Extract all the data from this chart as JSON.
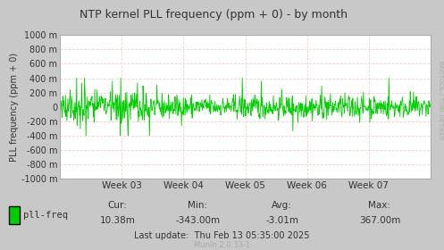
{
  "title": "NTP kernel PLL frequency (ppm + 0) - by month",
  "ylabel": "PLL frequency (ppm + 0)",
  "ylim": [
    -1000,
    1000
  ],
  "yticks": [
    -1000,
    -800,
    -600,
    -400,
    -200,
    0,
    200,
    400,
    600,
    800,
    1000
  ],
  "ytick_labels": [
    "-1000 m",
    "-800 m",
    "-600 m",
    "-400 m",
    "-200 m",
    "0",
    "200 m",
    "400 m",
    "600 m",
    "800 m",
    "1000 m"
  ],
  "x_week_labels": [
    "Week 03",
    "Week 04",
    "Week 05",
    "Week 06",
    "Week 07"
  ],
  "bg_color": "#c8c8c8",
  "plot_bg_color": "#ffffff",
  "grid_color_major": "#aaaaaa",
  "grid_color_minor": "#f0d0d0",
  "line_color": "#00cc00",
  "title_color": "#333333",
  "label_color": "#333333",
  "legend_label": "pll-freq",
  "legend_color": "#00cc00",
  "cur_label": "Cur:",
  "cur_val": "10.38m",
  "min_label": "Min:",
  "min_val": "-343.00m",
  "avg_label": "Avg:",
  "avg_val": "-3.01m",
  "max_label": "Max:",
  "max_val": "367.00m",
  "last_update": "Last update:  Thu Feb 13 05:35:00 2025",
  "watermark": "RRDTOOL / TOBI OETIKER",
  "munin_label": "Munin 2.0.33-1",
  "num_points": 800,
  "seed": 42
}
